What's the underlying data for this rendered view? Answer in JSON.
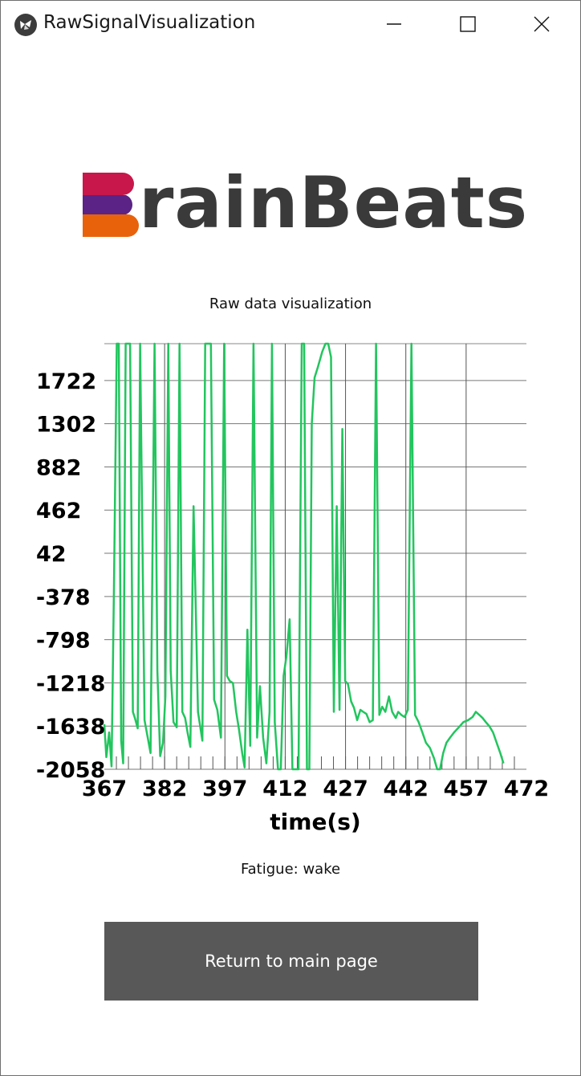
{
  "window": {
    "title": "RawSignalVisualization",
    "icon": "kivy-icon",
    "controls": [
      "minimize-icon",
      "maximize-icon",
      "close-icon"
    ]
  },
  "logo": {
    "text": "rainBeats",
    "colors": [
      "#c8174a",
      "#5a2385",
      "#e8620c"
    ]
  },
  "chart_label": "Raw data visualization",
  "chart_data": {
    "type": "line",
    "title": "",
    "xlabel": "time(s)",
    "ylabel": "",
    "xlim": [
      367,
      472
    ],
    "ylim": [
      -2058,
      2080
    ],
    "x_ticks": [
      367,
      382,
      397,
      412,
      427,
      442,
      457,
      472
    ],
    "y_ticks": [
      -2058,
      -1638,
      -1218,
      -798,
      -378,
      42,
      462,
      882,
      1302,
      1722
    ],
    "grid": true,
    "series": [
      {
        "color": "#22c55e",
        "x": [
          367,
          367.5,
          368.2,
          368.8,
          369.4,
          370.1,
          370.6,
          371.2,
          371.7,
          372.3,
          372.8,
          373.4,
          374.1,
          374.6,
          375.3,
          375.9,
          377,
          378.5,
          379.5,
          380.2,
          380.9,
          381.6,
          382.2,
          382.9,
          383.5,
          384.2,
          385,
          385.7,
          386.4,
          387.1,
          387.7,
          388.4,
          389.2,
          390.3,
          391.4,
          392.1,
          392.8,
          393.5,
          394.3,
          395.1,
          396,
          396.8,
          397.5,
          398.2,
          399,
          399.8,
          400.5,
          401.3,
          401.9,
          402.6,
          403.3,
          404.1,
          405,
          405.7,
          406.5,
          407.3,
          408.1,
          408.7,
          409.4,
          410.2,
          410.9,
          411.6,
          412.3,
          413.1,
          413.8,
          414.5,
          415.3,
          416.1,
          416.7,
          417.4,
          418,
          418.6,
          419.3,
          420.1,
          421.2,
          422,
          422.7,
          423.4,
          424.1,
          424.8,
          425.5,
          426.2,
          426.9,
          427.6,
          428.4,
          429.1,
          429.9,
          430.7,
          431.4,
          432.2,
          433,
          433.8,
          434.6,
          435.4,
          436.1,
          436.9,
          437.8,
          438.6,
          439.5,
          440.1,
          440.9,
          441.7,
          442.5,
          443.4,
          444.3,
          445.2,
          446.1,
          447,
          448,
          449,
          449.8,
          450.5,
          451.3,
          452.1,
          453,
          454,
          455.2,
          456.3,
          457.5,
          458.6,
          459.4,
          460.3,
          461.1,
          461.9,
          462.8,
          463.7,
          464.6,
          465.5,
          466.3
        ],
        "y": [
          -1620,
          -1940,
          -1700,
          -2030,
          -300,
          2080,
          2080,
          -1780,
          -2000,
          2080,
          2080,
          2080,
          -1500,
          -1560,
          -1660,
          2080,
          -1580,
          -1900,
          2080,
          -1100,
          -1930,
          -1800,
          -1350,
          2080,
          -1100,
          -1600,
          -1650,
          2080,
          -1500,
          -1560,
          -1700,
          -1840,
          500,
          -1500,
          -1780,
          2080,
          2080,
          2080,
          -1380,
          -1480,
          -1750,
          2080,
          -1150,
          -1200,
          -1220,
          -1500,
          -1670,
          -1900,
          -2040,
          -700,
          -1830,
          2080,
          -1750,
          -1250,
          -1750,
          -2000,
          -1500,
          2080,
          -1600,
          -2058,
          -2058,
          -1150,
          -960,
          -600,
          -2058,
          -2058,
          -2058,
          2080,
          2080,
          -2058,
          -2058,
          1300,
          1750,
          1850,
          2000,
          2080,
          2080,
          1950,
          -1500,
          500,
          -1480,
          1250,
          -1200,
          -1230,
          -1400,
          -1460,
          -1580,
          -1480,
          -1500,
          -1520,
          -1600,
          -1580,
          2080,
          -1530,
          -1450,
          -1500,
          -1350,
          -1500,
          -1560,
          -1500,
          -1530,
          -1550,
          -1480,
          2080,
          -1530,
          -1600,
          -1700,
          -1800,
          -1850,
          -1950,
          -2058,
          -2058,
          -1900,
          -1800,
          -1750,
          -1700,
          -1650,
          -1600,
          -1580,
          -1550,
          -1500,
          -1530,
          -1560,
          -1600,
          -1640,
          -1700,
          -1800,
          -1900,
          -2000
        ]
      }
    ]
  },
  "status_text": "Fatigue: wake",
  "button": {
    "label": "Return to main page"
  }
}
